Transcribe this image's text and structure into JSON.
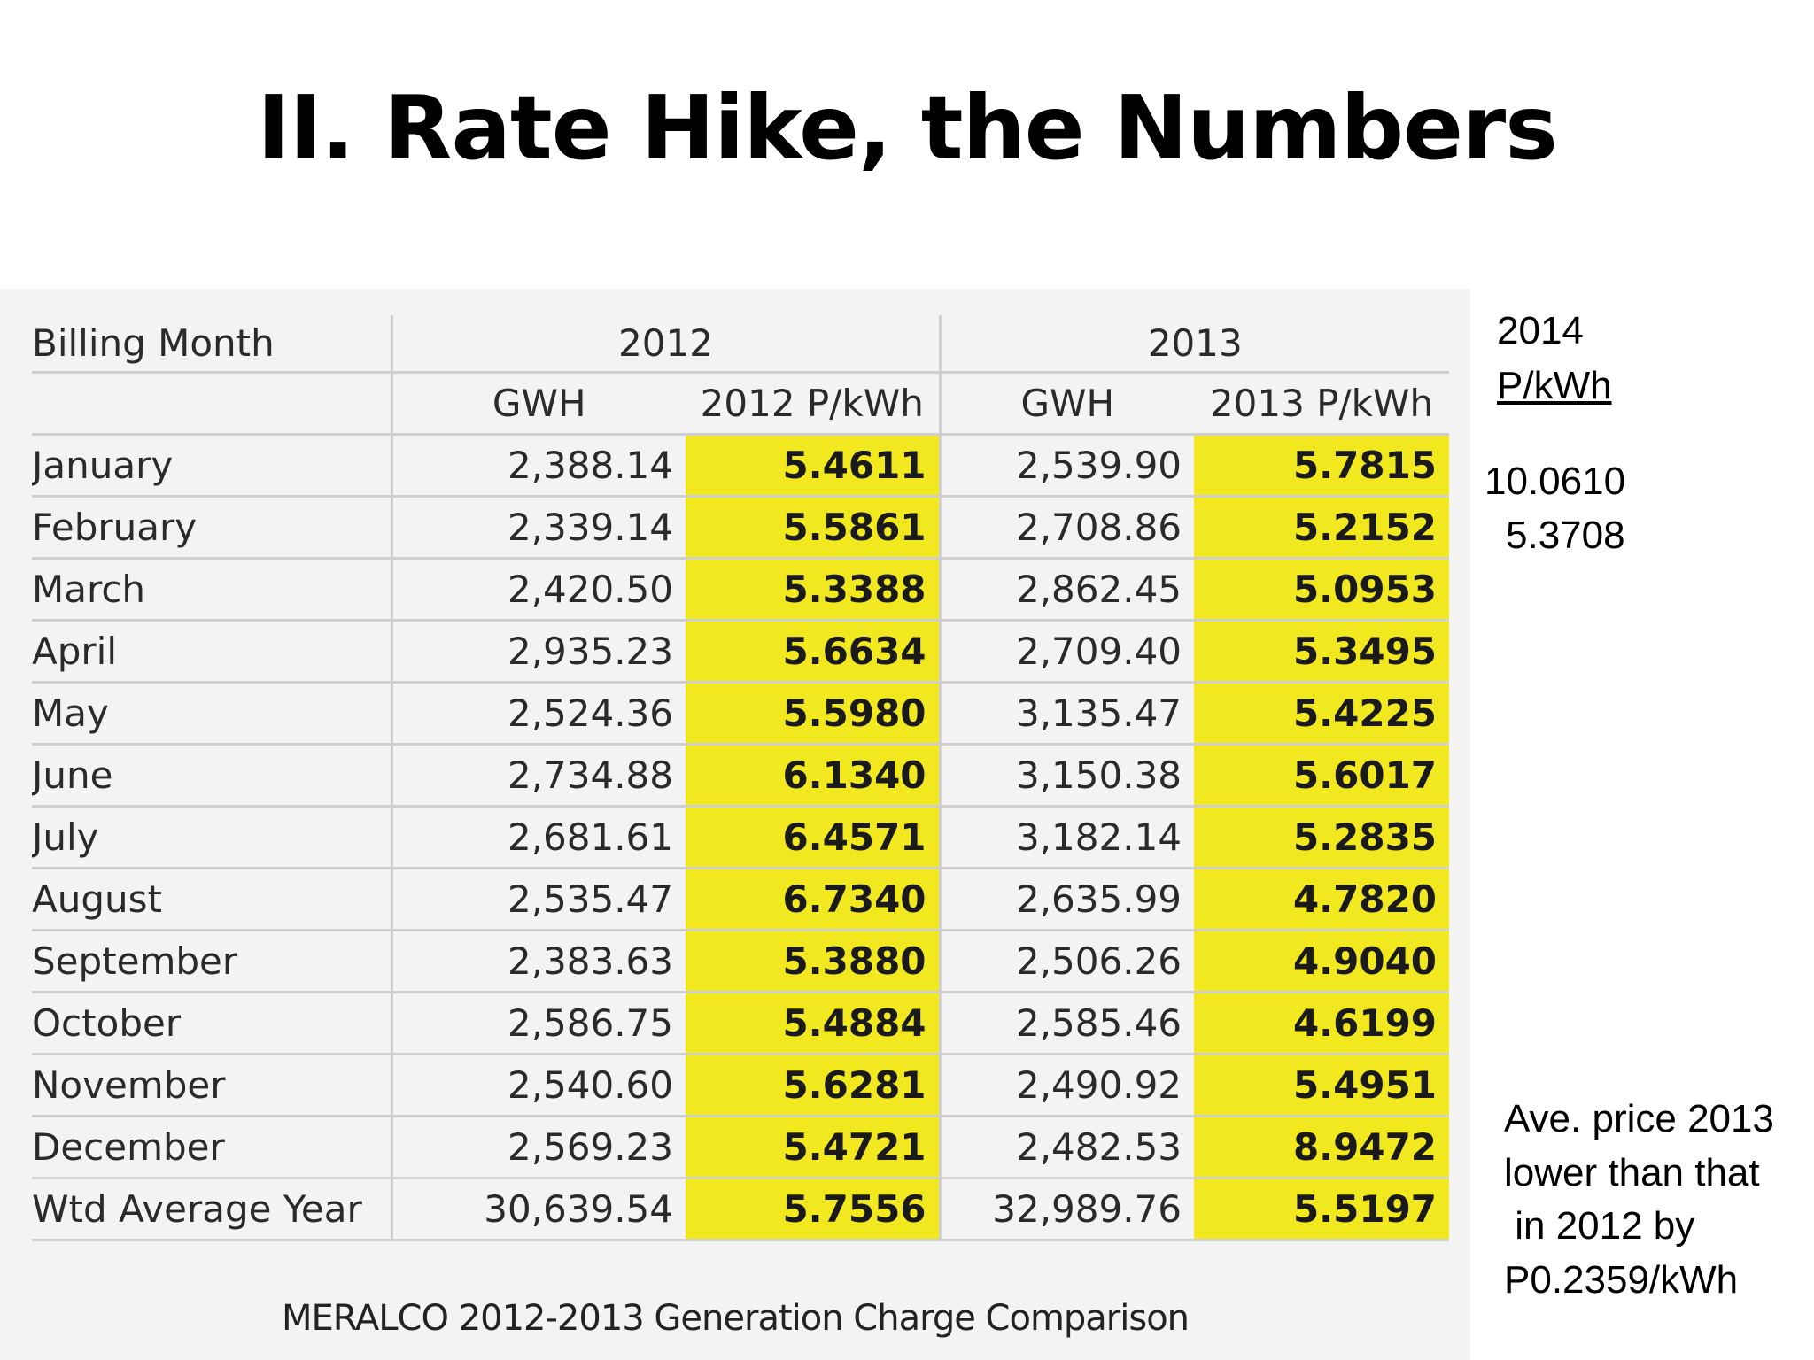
{
  "title": "II. Rate Hike, the Numbers",
  "table": {
    "headers": {
      "billing_month": "Billing Month",
      "year_2012": "2012",
      "year_2013": "2013",
      "gwh_2012": "GWH",
      "rate_2012": "2012 P/kWh",
      "gwh_2013": "GWH",
      "rate_2013": "2013 P/kWh"
    },
    "rows": [
      {
        "month": "January",
        "gwh_2012": "2,388.14",
        "rate_2012": "5.4611",
        "gwh_2013": "2,539.90",
        "rate_2013": "5.7815"
      },
      {
        "month": "February",
        "gwh_2012": "2,339.14",
        "rate_2012": "5.5861",
        "gwh_2013": "2,708.86",
        "rate_2013": "5.2152"
      },
      {
        "month": "March",
        "gwh_2012": "2,420.50",
        "rate_2012": "5.3388",
        "gwh_2013": "2,862.45",
        "rate_2013": "5.0953"
      },
      {
        "month": "April",
        "gwh_2012": "2,935.23",
        "rate_2012": "5.6634",
        "gwh_2013": "2,709.40",
        "rate_2013": "5.3495"
      },
      {
        "month": "May",
        "gwh_2012": "2,524.36",
        "rate_2012": "5.5980",
        "gwh_2013": "3,135.47",
        "rate_2013": "5.4225"
      },
      {
        "month": "June",
        "gwh_2012": "2,734.88",
        "rate_2012": "6.1340",
        "gwh_2013": "3,150.38",
        "rate_2013": "5.6017"
      },
      {
        "month": "July",
        "gwh_2012": "2,681.61",
        "rate_2012": "6.4571",
        "gwh_2013": "3,182.14",
        "rate_2013": "5.2835"
      },
      {
        "month": "August",
        "gwh_2012": "2,535.47",
        "rate_2012": "6.7340",
        "gwh_2013": "2,635.99",
        "rate_2013": "4.7820"
      },
      {
        "month": "September",
        "gwh_2012": "2,383.63",
        "rate_2012": "5.3880",
        "gwh_2013": "2,506.26",
        "rate_2013": "4.9040"
      },
      {
        "month": "October",
        "gwh_2012": "2,586.75",
        "rate_2012": "5.4884",
        "gwh_2013": "2,585.46",
        "rate_2013": "4.6199"
      },
      {
        "month": "November",
        "gwh_2012": "2,540.60",
        "rate_2012": "5.6281",
        "gwh_2013": "2,490.92",
        "rate_2013": "5.4951"
      },
      {
        "month": "December",
        "gwh_2012": "2,569.23",
        "rate_2012": "5.4721",
        "gwh_2013": "2,482.53",
        "rate_2013": "8.9472"
      },
      {
        "month": "Wtd Average Year",
        "gwh_2012": "30,639.54",
        "rate_2012": "5.7556",
        "gwh_2013": "32,989.76",
        "rate_2013": "5.5197"
      }
    ],
    "caption": "MERALCO 2012-2013 Generation Charge Comparison",
    "highlight_color": "#f2e81f"
  },
  "side_2014": {
    "year": "2014",
    "unit": "P/kWh",
    "values": [
      "10.0610",
      "5.3708"
    ]
  },
  "note": {
    "lines": [
      "Ave. price 2013",
      "lower than that",
      " in 2012 by",
      "P0.2359/kWh"
    ]
  }
}
